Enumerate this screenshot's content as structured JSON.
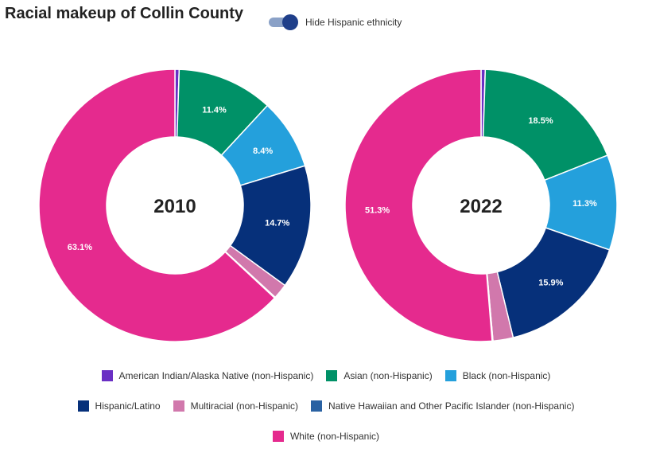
{
  "header": {
    "title": "Racial makeup of Collin County",
    "toggle_label": "Hide Hispanic ethnicity"
  },
  "chart_data": [
    {
      "type": "pie",
      "center_label": "2010",
      "slices": [
        {
          "name": "American Indian/Alaska Native (non-Hispanic)",
          "value": 0.5,
          "label": ""
        },
        {
          "name": "Asian (non-Hispanic)",
          "value": 11.4,
          "label": "11.4%"
        },
        {
          "name": "Black (non-Hispanic)",
          "value": 8.4,
          "label": "8.4%"
        },
        {
          "name": "Hispanic/Latino",
          "value": 14.7,
          "label": "14.7%"
        },
        {
          "name": "Multiracial (non-Hispanic)",
          "value": 1.8,
          "label": ""
        },
        {
          "name": "Native Hawaiian and Other Pacific Islander (non-Hispanic)",
          "value": 0.1,
          "label": ""
        },
        {
          "name": "White (non-Hispanic)",
          "value": 63.1,
          "label": "63.1%"
        }
      ]
    },
    {
      "type": "pie",
      "center_label": "2022",
      "slices": [
        {
          "name": "American Indian/Alaska Native (non-Hispanic)",
          "value": 0.5,
          "label": ""
        },
        {
          "name": "Asian (non-Hispanic)",
          "value": 18.5,
          "label": "18.5%"
        },
        {
          "name": "Black (non-Hispanic)",
          "value": 11.3,
          "label": "11.3%"
        },
        {
          "name": "Hispanic/Latino",
          "value": 15.9,
          "label": "15.9%"
        },
        {
          "name": "Multiracial (non-Hispanic)",
          "value": 2.4,
          "label": ""
        },
        {
          "name": "Native Hawaiian and Other Pacific Islander (non-Hispanic)",
          "value": 0.1,
          "label": ""
        },
        {
          "name": "White (non-Hispanic)",
          "value": 51.3,
          "label": "51.3%"
        }
      ]
    }
  ],
  "legend": {
    "rows": [
      [
        {
          "label": "American Indian/Alaska Native (non-Hispanic)",
          "color": "#6a2fc4"
        },
        {
          "label": "Asian (non-Hispanic)",
          "color": "#009167"
        },
        {
          "label": "Black (non-Hispanic)",
          "color": "#24a0dc"
        }
      ],
      [
        {
          "label": "Hispanic/Latino",
          "color": "#06307a"
        },
        {
          "label": "Multiracial (non-Hispanic)",
          "color": "#d178ac"
        },
        {
          "label": "Native Hawaiian and Other Pacific Islander (non-Hispanic)",
          "color": "#2a62a3"
        }
      ],
      [
        {
          "label": "White (non-Hispanic)",
          "color": "#e52a8e"
        }
      ]
    ]
  }
}
